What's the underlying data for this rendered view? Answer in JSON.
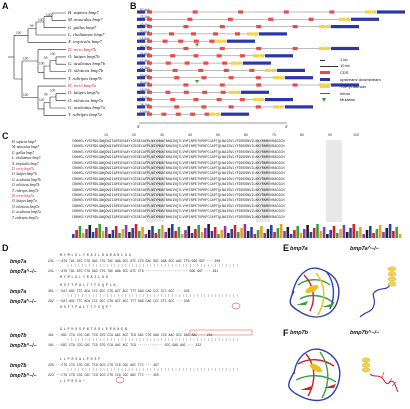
{
  "panels": {
    "A": "A",
    "B": "B",
    "C": "C",
    "D": "D",
    "E": "E",
    "F": "F"
  },
  "tree": {
    "species": [
      {
        "name": "H. sapiens bmp7",
        "highlight": false
      },
      {
        "name": "M. musculus bmp7",
        "highlight": false
      },
      {
        "name": "G. gallus bmp7",
        "highlight": false
      },
      {
        "name": "L. chalumnae bmp7",
        "highlight": false
      },
      {
        "name": "X. tropicalis bmp7",
        "highlight": false
      },
      {
        "name": "D. rerio bmp7b",
        "highlight": true
      },
      {
        "name": "O. latipes bmp7b",
        "highlight": false
      },
      {
        "name": "G. aculeatus bmp7b",
        "highlight": false
      },
      {
        "name": "O. niloticus bmp7b",
        "highlight": false
      },
      {
        "name": "T. rubripes bmp7b",
        "highlight": false
      },
      {
        "name": "D. rerio bmp7a",
        "highlight": true
      },
      {
        "name": "O. latipes bmp7a",
        "highlight": false
      },
      {
        "name": "O. niloticus bmp7a",
        "highlight": false
      },
      {
        "name": "G. aculeatus bmp7a",
        "highlight": false
      },
      {
        "name": "T. rubripes bmp7a",
        "highlight": false
      }
    ],
    "bootstrap": [
      "100",
      "100",
      "99",
      "100",
      "100",
      "99",
      "100",
      "100",
      "100",
      "99",
      "100",
      "100"
    ]
  },
  "genes": {
    "lengths": [
      "97.4kb",
      "72.1kb",
      "60.4kb",
      "33.6kb",
      "16.8kb",
      "59.7kb",
      "21.6kb",
      "17.3kb",
      "22.3kb",
      "25.9kb",
      "60.6kb",
      "16.2kb",
      "18.7kb",
      "28.1kb",
      "13.5kb"
    ],
    "scale_5p": "5'",
    "scale_3p": "3'"
  },
  "legend": {
    "kb1": "1 kb",
    "kb10": "10 kb",
    "cds": "CDS",
    "utr": "upstream/ downstream",
    "tgf": "TGF-β domain",
    "intron": "Intron",
    "mutation": "Mutation"
  },
  "alignment": {
    "ticks": [
      "10",
      "20",
      "30",
      "40",
      "50",
      "60",
      "70",
      "80",
      "90",
      "100"
    ],
    "names": [
      {
        "name": "H. sapiens bmp7",
        "highlight": false
      },
      {
        "name": "M. musculus bmp7",
        "highlight": false
      },
      {
        "name": "G. gallus bmp7",
        "highlight": false
      },
      {
        "name": "L. chalumnae bmp7",
        "highlight": false
      },
      {
        "name": "X. tropicalis bmp7",
        "highlight": false
      },
      {
        "name": "D. rerio bmp7b",
        "highlight": true
      },
      {
        "name": "O. latipes bmp7b",
        "highlight": false
      },
      {
        "name": "G. aculeatus bmp7b",
        "highlight": false
      },
      {
        "name": "O. niloticus bmp7b",
        "highlight": false
      },
      {
        "name": "T. rubripes bmp7b",
        "highlight": false
      },
      {
        "name": "D. rerio bmp7a",
        "highlight": true
      },
      {
        "name": "O. latipes bmp7a",
        "highlight": false
      },
      {
        "name": "O. niloticus bmp7a",
        "highlight": false
      },
      {
        "name": "G. aculeatus bmp7a",
        "highlight": false
      },
      {
        "name": "T. rubripes bmp7a",
        "highlight": false
      }
    ],
    "seq": "CKKHELYVSFRDLGWQDWIIAPEGYAAYYCEGECAFPLNSYMNATNHAIVQTLVHFINPETVPKPCCAPTQLNAISVLYFDDSSNVILKKYRNMVVRACGCH"
  },
  "panelD": {
    "blocks": [
      {
        "label": "bmp7a",
        "aa": "M  Y  M  L  D  L  Y  R  A  I  L  D  G  R  A  N  L  G  G",
        "nt": "241 ···ATG TAC ATG CTG GAC CTG TAC AGA GCC ATC CTG GAC GGC AGA GCC AAC CTG GGG GGT ··· 300",
        "red": true
      },
      {
        "label": "bmp7a^−/−",
        "aa": "",
        "nt": "241 ···ATG TAC ATG CTG GAC CTG TAC AGA GCC ATC CTG ······················ GGG GGT ··· 291",
        "red": false
      },
      {
        "label": "",
        "aa": "M  Y  M  L  D  L  Y  R  A  I  L           G  G",
        "nt": "",
        "red": false
      },
      {
        "label": "bmp7a",
        "aa": "H  S  F  T  P  A  L  T  T  F  E  Q  P  L  A",
        "nt": "301 ···CAT AGC TTC ACA CCC GCC CTG ACT ACC TTT GAG CAG CCC CTC GCC ··· 345",
        "red": false
      },
      {
        "label": "bmp7a^−/−",
        "aa": "",
        "nt": "292 ···CAT AGC TTC ACA CCC GCC CTG ACT ACC TTT GAG CAG CCC CTC GCC ··· 336",
        "red": false
      },
      {
        "label": "",
        "aa": "H  S  F  T  P  A  L  T  T  F  E  Q  P  *",
        "nt": "",
        "red": false
      },
      {
        "label": "bmp7b",
        "aa": "G  L  P  H  S  V  P  N  T  S  D  L  E  P  N  A  E  N",
        "nt": "181 ···GGC CTA CCG CAC TCG GTG CCA AAC ACC TCG GAC CTG GAG CCG AAC GCC GAG AAC ··· 234",
        "red": true
      },
      {
        "label": "bmp7b^−/−",
        "aa": "",
        "nt": "181 ···GGC CTA CCG CAC TCG GTG CCA AAC ACC TCG ············· GCC GAG AAC ··· 222",
        "red": false
      },
      {
        "label": "bmp7b",
        "aa": "L  L  P  R  S  A  L  P  R  S  F",
        "nt": "235 ···CTG CTG CCG CGC TCG GCG CTG CCG CGC AGC TTC ··· 267",
        "red": false
      },
      {
        "label": "bmp7b^−/−",
        "aa": "",
        "nt": "223 ···CTG CTG CCG CGC TCG GCG CTG CCG CGC AGC TTC ··· 255",
        "red": false
      },
      {
        "label": "",
        "aa": "L  L  P  R  S  A  *",
        "nt": "",
        "red": false
      }
    ]
  },
  "panelE": {
    "left": "bmp7a",
    "right": "bmp7a^−/−"
  },
  "panelF": {
    "left": "bmp7b",
    "right": "bmp7b^−/−"
  }
}
